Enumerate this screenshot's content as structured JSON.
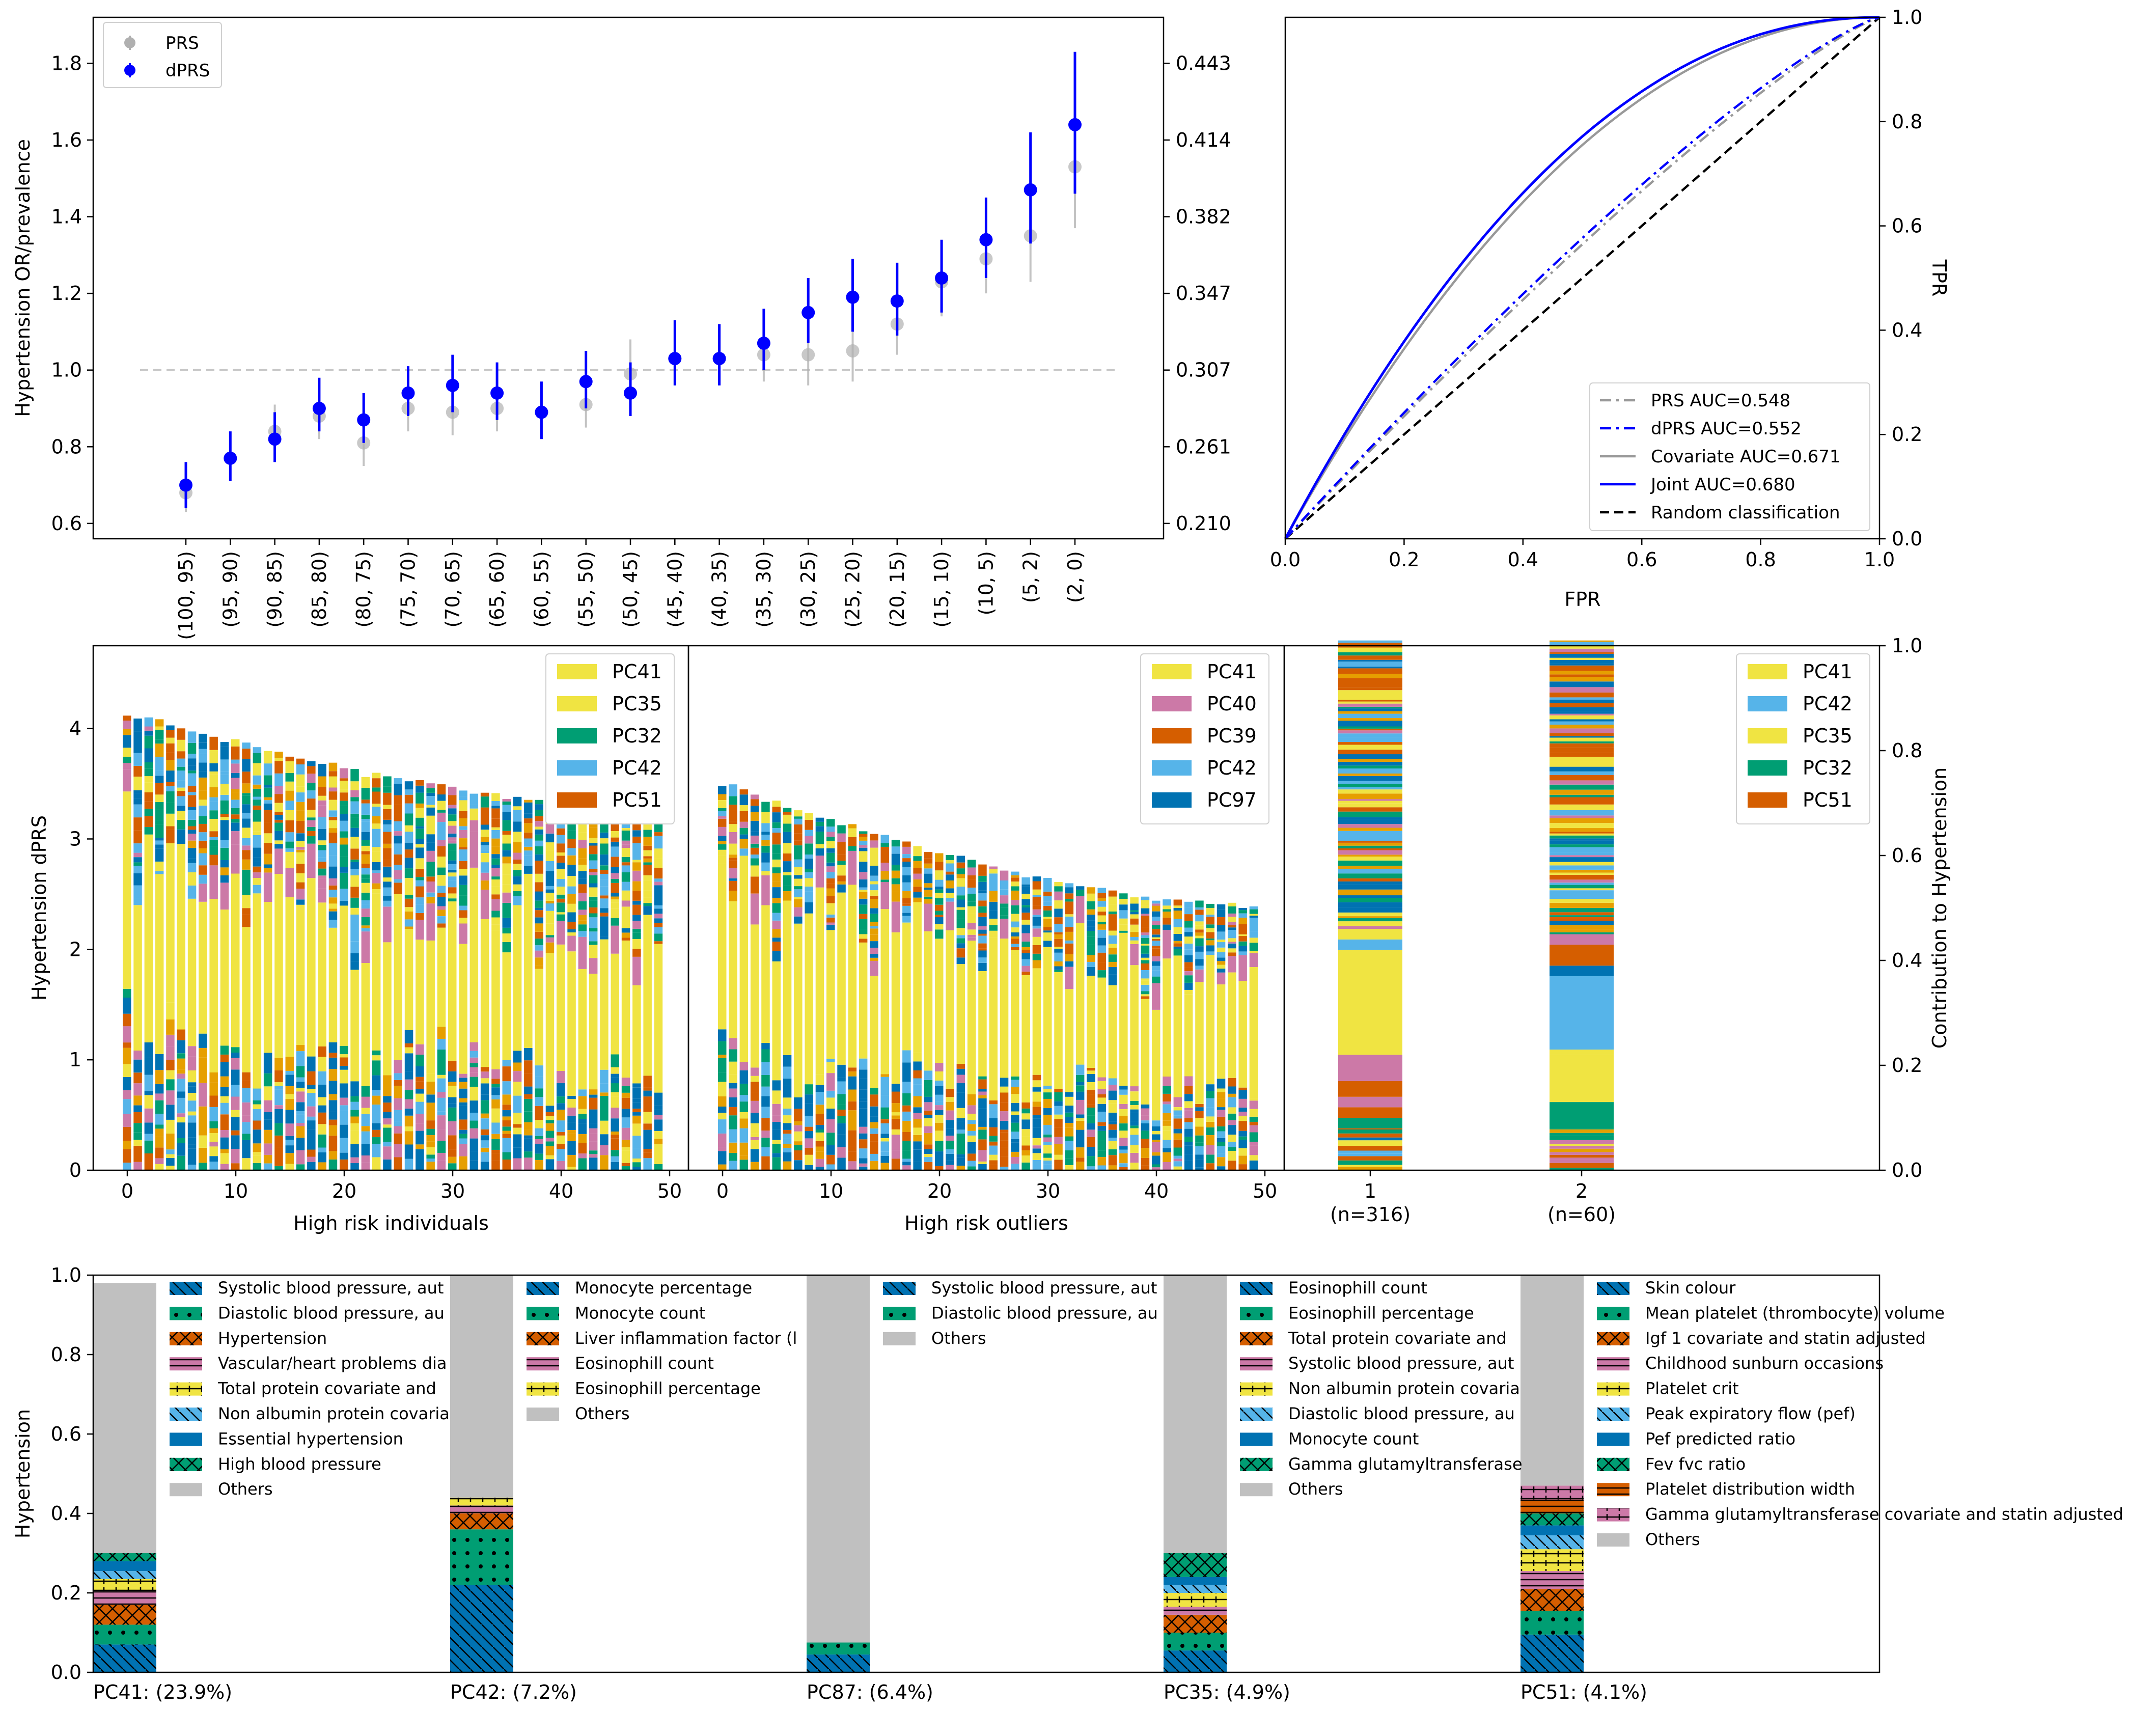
{
  "chart_data": [
    {
      "id": "or_panel",
      "type": "scatter",
      "ylabel": "Hypertension OR/prevalence",
      "ylim": [
        0.56,
        1.92
      ],
      "yticks": [
        "0.6",
        "0.8",
        "1.0",
        "1.2",
        "1.4",
        "1.6",
        "1.8"
      ],
      "right_ticks": [
        "0.210",
        "0.261",
        "0.307",
        "0.347",
        "0.382",
        "0.414",
        "0.443"
      ],
      "categories": [
        "(100, 95)",
        "(95, 90)",
        "(90, 85)",
        "(85, 80)",
        "(80, 75)",
        "(75, 70)",
        "(70, 65)",
        "(65, 60)",
        "(60, 55)",
        "(55, 50)",
        "(50, 45)",
        "(45, 40)",
        "(40, 35)",
        "(35, 30)",
        "(30, 25)",
        "(25, 20)",
        "(20, 15)",
        "(15, 10)",
        "(10, 5)",
        "(5, 2)",
        "(2, 0)"
      ],
      "reference_line": 1.0,
      "series": [
        {
          "name": "PRS",
          "color": "#b0b0b0",
          "values": [
            0.68,
            0.77,
            0.84,
            0.88,
            0.81,
            0.9,
            0.89,
            0.9,
            0.89,
            0.91,
            0.99,
            1.03,
            1.03,
            1.04,
            1.04,
            1.05,
            1.12,
            1.23,
            1.29,
            1.35,
            1.53
          ],
          "lower": [
            0.63,
            0.71,
            0.78,
            0.82,
            0.75,
            0.84,
            0.83,
            0.84,
            0.83,
            0.85,
            0.92,
            0.96,
            0.96,
            0.97,
            0.96,
            0.97,
            1.04,
            1.14,
            1.2,
            1.23,
            1.37
          ],
          "upper": [
            0.73,
            0.83,
            0.91,
            0.94,
            0.87,
            0.97,
            0.96,
            0.97,
            0.96,
            0.98,
            1.08,
            1.1,
            1.1,
            1.12,
            1.12,
            1.13,
            1.2,
            1.32,
            1.39,
            1.47,
            1.7
          ]
        },
        {
          "name": "dPRS",
          "color": "#0000ff",
          "values": [
            0.7,
            0.77,
            0.82,
            0.9,
            0.87,
            0.94,
            0.96,
            0.94,
            0.89,
            0.97,
            0.94,
            1.03,
            1.03,
            1.07,
            1.15,
            1.19,
            1.18,
            1.24,
            1.34,
            1.47,
            1.64
          ],
          "lower": [
            0.64,
            0.71,
            0.76,
            0.84,
            0.81,
            0.88,
            0.89,
            0.87,
            0.82,
            0.9,
            0.88,
            0.96,
            0.96,
            1.0,
            1.07,
            1.1,
            1.09,
            1.15,
            1.24,
            1.33,
            1.46
          ],
          "upper": [
            0.76,
            0.84,
            0.89,
            0.98,
            0.94,
            1.01,
            1.04,
            1.02,
            0.97,
            1.05,
            1.02,
            1.13,
            1.12,
            1.16,
            1.24,
            1.29,
            1.28,
            1.34,
            1.45,
            1.62,
            1.83
          ]
        }
      ]
    },
    {
      "id": "roc_panel",
      "type": "line",
      "xlabel": "FPR",
      "ylabel": "TPR",
      "xlim": [
        0,
        1
      ],
      "ylim": [
        0,
        1
      ],
      "ticks": [
        "0.0",
        "0.2",
        "0.4",
        "0.6",
        "0.8",
        "1.0"
      ],
      "series": [
        {
          "name": "PRS AUC=0.548",
          "color": "#999999",
          "style": "dashdot"
        },
        {
          "name": "dPRS AUC=0.552",
          "color": "#0000ff",
          "style": "dashdot"
        },
        {
          "name": "Covariate AUC=0.671",
          "color": "#999999",
          "style": "solid"
        },
        {
          "name": "Joint AUC=0.680",
          "color": "#0000ff",
          "style": "solid"
        },
        {
          "name": "Random classification",
          "color": "#000000",
          "style": "dashed"
        }
      ]
    },
    {
      "id": "dprs_individuals",
      "type": "bar",
      "stacked": true,
      "ylabel": "Hypertension dPRS",
      "xlabel": "High risk individuals",
      "n_bars": 50,
      "top_value": 4.15,
      "bottom_value": 3.28,
      "ylim": [
        0,
        4.75
      ],
      "yticks": [
        "0",
        "1",
        "2",
        "3",
        "4"
      ],
      "xticks": [
        "0",
        "10",
        "20",
        "30",
        "40",
        "50"
      ],
      "legend": [
        "PC41",
        "PC35",
        "PC32",
        "PC42",
        "PC51"
      ]
    },
    {
      "id": "dprs_outliers",
      "type": "bar",
      "stacked": true,
      "xlabel": "High risk outliers",
      "n_bars": 50,
      "top_value": 3.52,
      "bottom_value": 2.4,
      "xticks": [
        "0",
        "10",
        "20",
        "30",
        "40",
        "50"
      ],
      "legend": [
        "PC41",
        "PC40",
        "PC39",
        "PC42",
        "PC97"
      ]
    },
    {
      "id": "cluster_contrib",
      "type": "bar",
      "stacked": true,
      "ylabel": "Contribution to Hypertension",
      "categories": [
        "1",
        "2"
      ],
      "category_sublabels": [
        "(n=316)",
        "(n=60)"
      ],
      "yticks": [
        "0.0",
        "0.2",
        "0.4",
        "0.6",
        "0.8",
        "1.0"
      ],
      "legend": [
        "PC41",
        "PC42",
        "PC35",
        "PC32",
        "PC51"
      ]
    },
    {
      "id": "pc_loadings",
      "type": "bar",
      "stacked": true,
      "ylabel": "Hypertension",
      "ylim": [
        0,
        1
      ],
      "yticks": [
        "0.0",
        "0.2",
        "0.4",
        "0.6",
        "0.8",
        "1.0"
      ],
      "groups": [
        {
          "label": "PC41: (23.9%)",
          "legend": [
            "Systolic blood pressure, aut",
            "Diastolic blood pressure, au",
            "Hypertension",
            "Vascular/heart problems dia",
            "Total protein covariate and",
            "Non albumin protein covaria",
            "Essential hypertension",
            "High blood pressure",
            "Others"
          ],
          "values": [
            0.07,
            0.05,
            0.05,
            0.035,
            0.03,
            0.02,
            0.025,
            0.02,
            0.68
          ]
        },
        {
          "label": "PC42: (7.2%)",
          "legend": [
            "Monocyte percentage",
            "Monocyte count",
            "Liver inflammation factor (l",
            "Eosinophill count",
            "Eosinophill percentage",
            "Others"
          ],
          "values": [
            0.22,
            0.14,
            0.04,
            0.02,
            0.02,
            0.56
          ]
        },
        {
          "label": "PC87: (6.4%)",
          "legend": [
            "Systolic blood pressure, aut",
            "Diastolic blood pressure, au",
            "Others"
          ],
          "values": [
            0.045,
            0.03,
            0.925
          ]
        },
        {
          "label": "PC35: (4.9%)",
          "legend": [
            "Eosinophill count",
            "Eosinophill percentage",
            "Total protein covariate and",
            "Systolic blood pressure, aut",
            "Non albumin protein covaria",
            "Diastolic blood pressure, au",
            "Monocyte count",
            "Gamma glutamyltransferase",
            "Others"
          ],
          "values": [
            0.055,
            0.045,
            0.045,
            0.02,
            0.035,
            0.02,
            0.02,
            0.06,
            0.7
          ]
        },
        {
          "label": "PC51: (4.1%)",
          "legend": [
            "Skin colour",
            "Mean platelet (thrombocyte) volume",
            "Igf 1 covariate and statin adjusted",
            "Childhood sunburn occasions",
            "Platelet crit",
            "Peak expiratory flow (pef)",
            "Pef predicted ratio",
            "Fev fvc ratio",
            "Platelet distribution width",
            "Gamma glutamyltransferase covariate and statin adjusted",
            "Others"
          ],
          "values": [
            0.095,
            0.06,
            0.055,
            0.045,
            0.055,
            0.035,
            0.025,
            0.03,
            0.035,
            0.035,
            0.53
          ]
        }
      ]
    }
  ]
}
